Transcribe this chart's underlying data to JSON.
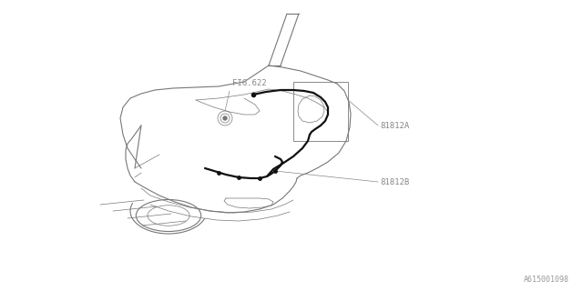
{
  "bg_color": "#ffffff",
  "line_color": "#888888",
  "dark_line_color": "#111111",
  "body_line_color": "#777777",
  "text_color": "#888888",
  "fig_width": 6.4,
  "fig_height": 3.2,
  "label_81812A": "81812A",
  "label_81812B": "81812B",
  "label_fig622": "FIG.622",
  "label_part_number": "A615001098",
  "font_size_labels": 6.5,
  "font_size_partnum": 6.0
}
